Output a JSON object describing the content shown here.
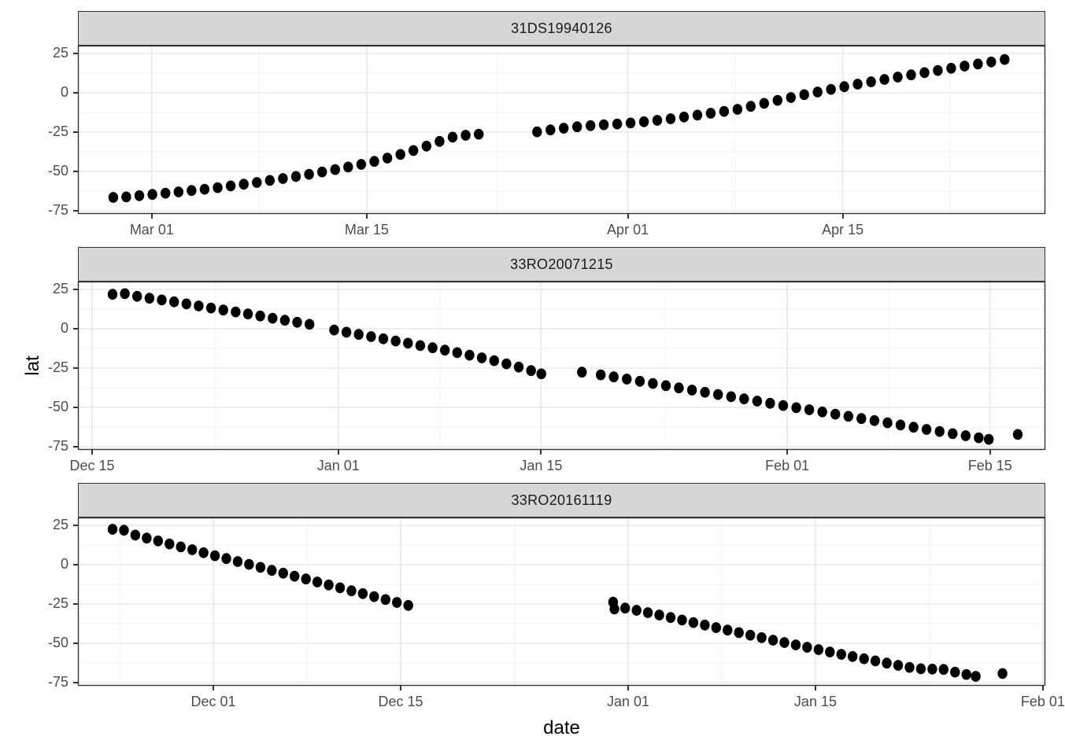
{
  "axis": {
    "x_label": "date",
    "y_label": "lat"
  },
  "colors": {
    "background": "#ffffff",
    "strip_background": "#d6d6d6",
    "strip_border": "#333333",
    "panel_border": "#333333",
    "grid_major": "#e8e8e8",
    "grid_minor": "#f4f4f4",
    "tick_mark": "#333333",
    "tick_label": "#4d4d4d",
    "point": "#000000"
  },
  "y_axis": {
    "tick_labels": [
      "25",
      "0",
      "-25",
      "-50",
      "-75"
    ],
    "tick_values": [
      25,
      0,
      -25,
      -50,
      -75
    ],
    "minor_values": [
      12.5,
      -12.5,
      -37.5,
      -62.5
    ],
    "domain": [
      30,
      -77
    ]
  },
  "chart_data": [
    {
      "type": "scatter",
      "facet": "31DS19940126",
      "x_domain_days": [
        0,
        63.0
      ],
      "x_ticks": [
        {
          "label": "Mar 01",
          "day": 4.81
        },
        {
          "label": "Mar 15",
          "day": 18.81
        },
        {
          "label": "Apr 01",
          "day": 35.81
        },
        {
          "label": "Apr 15",
          "day": 49.81
        }
      ],
      "x_minor_days": [
        11.81,
        27.31,
        42.81,
        56.81
      ],
      "points": [
        [
          2.3,
          -66.5
        ],
        [
          3.15,
          -66.2
        ],
        [
          4.0,
          -65.4
        ],
        [
          4.85,
          -64.6
        ],
        [
          5.7,
          -63.8
        ],
        [
          6.55,
          -63.0
        ],
        [
          7.4,
          -62.1
        ],
        [
          8.25,
          -61.3
        ],
        [
          9.1,
          -60.3
        ],
        [
          9.95,
          -59.2
        ],
        [
          10.8,
          -58.1
        ],
        [
          11.65,
          -57.0
        ],
        [
          12.5,
          -55.7
        ],
        [
          13.35,
          -54.5
        ],
        [
          14.2,
          -53.2
        ],
        [
          15.05,
          -51.8
        ],
        [
          15.9,
          -50.3
        ],
        [
          16.75,
          -48.8
        ],
        [
          17.6,
          -47.2
        ],
        [
          18.45,
          -45.5
        ],
        [
          19.3,
          -43.6
        ],
        [
          20.15,
          -41.5
        ],
        [
          21.0,
          -39.2
        ],
        [
          21.85,
          -36.7
        ],
        [
          22.7,
          -33.9
        ],
        [
          23.55,
          -30.9
        ],
        [
          24.4,
          -28.2
        ],
        [
          25.25,
          -27.0
        ],
        [
          26.1,
          -26.3
        ],
        [
          29.9,
          -24.8
        ],
        [
          30.77,
          -23.6
        ],
        [
          31.64,
          -22.5
        ],
        [
          32.51,
          -21.6
        ],
        [
          33.38,
          -20.9
        ],
        [
          34.25,
          -20.3
        ],
        [
          35.12,
          -19.8
        ],
        [
          35.99,
          -19.2
        ],
        [
          36.86,
          -18.4
        ],
        [
          37.73,
          -17.5
        ],
        [
          38.6,
          -16.5
        ],
        [
          39.47,
          -15.4
        ],
        [
          40.34,
          -14.2
        ],
        [
          41.21,
          -13.0
        ],
        [
          42.08,
          -11.8
        ],
        [
          42.95,
          -10.5
        ],
        [
          43.82,
          -8.6
        ],
        [
          44.69,
          -6.7
        ],
        [
          45.56,
          -4.8
        ],
        [
          46.43,
          -3.0
        ],
        [
          47.3,
          -1.2
        ],
        [
          48.17,
          0.5
        ],
        [
          49.04,
          2.2
        ],
        [
          49.91,
          3.9
        ],
        [
          50.78,
          5.5
        ],
        [
          51.65,
          7.0
        ],
        [
          52.52,
          8.5
        ],
        [
          53.39,
          10.0
        ],
        [
          54.26,
          11.4
        ],
        [
          55.13,
          12.8
        ],
        [
          56.0,
          14.2
        ],
        [
          56.87,
          15.6
        ],
        [
          57.74,
          17.0
        ],
        [
          58.61,
          18.3
        ],
        [
          59.48,
          19.6
        ],
        [
          60.35,
          21.2
        ]
      ]
    },
    {
      "type": "scatter",
      "facet": "33RO20071215",
      "x_domain_days": [
        0,
        66.8
      ],
      "x_ticks": [
        {
          "label": "Dec 15",
          "day": 0.98
        },
        {
          "label": "Jan 01",
          "day": 17.98
        },
        {
          "label": "Jan 15",
          "day": 31.98
        },
        {
          "label": "Feb 01",
          "day": 48.98
        },
        {
          "label": "Feb 15",
          "day": 62.98
        }
      ],
      "x_minor_days": [
        9.48,
        24.98,
        40.48,
        55.98
      ],
      "points": [
        [
          2.39,
          21.9
        ],
        [
          3.24,
          22.3
        ],
        [
          4.09,
          20.6
        ],
        [
          4.94,
          19.4
        ],
        [
          5.79,
          18.3
        ],
        [
          6.64,
          17.1
        ],
        [
          7.49,
          15.8
        ],
        [
          8.34,
          14.5
        ],
        [
          9.19,
          13.2
        ],
        [
          10.04,
          11.9
        ],
        [
          10.89,
          10.7
        ],
        [
          11.74,
          9.4
        ],
        [
          12.59,
          8.1
        ],
        [
          13.44,
          6.7
        ],
        [
          14.29,
          5.4
        ],
        [
          15.14,
          4.1
        ],
        [
          15.99,
          2.8
        ],
        [
          17.69,
          -0.8
        ],
        [
          18.54,
          -2.2
        ],
        [
          19.39,
          -3.6
        ],
        [
          20.24,
          -5.0
        ],
        [
          21.09,
          -6.4
        ],
        [
          21.94,
          -7.8
        ],
        [
          22.79,
          -9.2
        ],
        [
          23.64,
          -10.7
        ],
        [
          24.49,
          -12.1
        ],
        [
          25.34,
          -13.6
        ],
        [
          26.19,
          -15.2
        ],
        [
          27.04,
          -16.8
        ],
        [
          27.89,
          -18.5
        ],
        [
          28.74,
          -20.3
        ],
        [
          29.59,
          -22.3
        ],
        [
          30.44,
          -24.4
        ],
        [
          31.29,
          -26.6
        ],
        [
          32.0,
          -28.7
        ],
        [
          34.8,
          -27.6
        ],
        [
          36.1,
          -29.3
        ],
        [
          37.0,
          -30.6
        ],
        [
          37.9,
          -32.0
        ],
        [
          38.8,
          -33.4
        ],
        [
          39.7,
          -34.8
        ],
        [
          40.6,
          -36.2
        ],
        [
          41.5,
          -37.6
        ],
        [
          42.4,
          -39.0
        ],
        [
          43.3,
          -40.4
        ],
        [
          44.2,
          -41.8
        ],
        [
          45.1,
          -43.2
        ],
        [
          46.0,
          -44.6
        ],
        [
          46.9,
          -46.0
        ],
        [
          47.8,
          -47.4
        ],
        [
          48.7,
          -48.8
        ],
        [
          49.6,
          -50.2
        ],
        [
          50.5,
          -51.5
        ],
        [
          51.4,
          -52.9
        ],
        [
          52.3,
          -54.3
        ],
        [
          53.2,
          -55.7
        ],
        [
          54.1,
          -57.1
        ],
        [
          55.0,
          -58.4
        ],
        [
          55.9,
          -59.8
        ],
        [
          56.8,
          -61.2
        ],
        [
          57.7,
          -62.6
        ],
        [
          58.6,
          -64.0
        ],
        [
          59.5,
          -65.3
        ],
        [
          60.4,
          -66.7
        ],
        [
          61.3,
          -68.0
        ],
        [
          62.2,
          -69.3
        ],
        [
          62.9,
          -70.3
        ],
        [
          64.9,
          -67.2
        ]
      ]
    },
    {
      "type": "scatter",
      "facet": "33RO20161119",
      "x_domain_days": [
        0,
        72.3
      ],
      "x_ticks": [
        {
          "label": "Dec 01",
          "day": 10.12
        },
        {
          "label": "Dec 15",
          "day": 24.12
        },
        {
          "label": "Jan 01",
          "day": 41.12
        },
        {
          "label": "Jan 15",
          "day": 55.12
        },
        {
          "label": "Feb 01",
          "day": 72.12
        }
      ],
      "x_minor_days": [
        3.12,
        17.12,
        32.62,
        48.12,
        63.62
      ],
      "points": [
        [
          2.59,
          22.5
        ],
        [
          3.44,
          21.9
        ],
        [
          4.29,
          18.8
        ],
        [
          5.14,
          16.9
        ],
        [
          5.99,
          15.1
        ],
        [
          6.84,
          13.2
        ],
        [
          7.69,
          11.3
        ],
        [
          8.54,
          9.5
        ],
        [
          9.39,
          7.6
        ],
        [
          10.24,
          5.7
        ],
        [
          11.09,
          3.9
        ],
        [
          11.94,
          2.0
        ],
        [
          12.79,
          0.2
        ],
        [
          13.64,
          -1.7
        ],
        [
          14.49,
          -3.6
        ],
        [
          15.34,
          -5.4
        ],
        [
          16.19,
          -7.3
        ],
        [
          17.04,
          -9.1
        ],
        [
          17.89,
          -11.0
        ],
        [
          18.74,
          -12.9
        ],
        [
          19.59,
          -14.7
        ],
        [
          20.44,
          -16.6
        ],
        [
          21.29,
          -18.4
        ],
        [
          22.14,
          -20.3
        ],
        [
          22.99,
          -22.2
        ],
        [
          23.84,
          -24.0
        ],
        [
          24.69,
          -25.9
        ],
        [
          40.0,
          -23.8
        ],
        [
          40.1,
          -28.2
        ],
        [
          40.9,
          -27.6
        ],
        [
          41.75,
          -29.0
        ],
        [
          42.6,
          -30.5
        ],
        [
          43.45,
          -32.0
        ],
        [
          44.3,
          -33.6
        ],
        [
          45.15,
          -35.2
        ],
        [
          46.0,
          -36.8
        ],
        [
          46.85,
          -38.4
        ],
        [
          47.7,
          -40.0
        ],
        [
          48.55,
          -41.6
        ],
        [
          49.4,
          -43.2
        ],
        [
          50.25,
          -44.8
        ],
        [
          51.1,
          -46.4
        ],
        [
          51.95,
          -48.0
        ],
        [
          52.8,
          -49.5
        ],
        [
          53.65,
          -51.0
        ],
        [
          54.5,
          -52.5
        ],
        [
          55.35,
          -54.0
        ],
        [
          56.2,
          -55.5
        ],
        [
          57.05,
          -57.0
        ],
        [
          57.9,
          -58.4
        ],
        [
          58.75,
          -59.8
        ],
        [
          59.6,
          -61.2
        ],
        [
          60.45,
          -62.6
        ],
        [
          61.3,
          -64.0
        ],
        [
          62.15,
          -65.3
        ],
        [
          63.0,
          -66.2
        ],
        [
          63.85,
          -66.4
        ],
        [
          64.7,
          -66.6
        ],
        [
          65.55,
          -68.3
        ],
        [
          66.4,
          -69.8
        ],
        [
          67.1,
          -71.0
        ],
        [
          69.1,
          -69.2
        ]
      ]
    }
  ]
}
